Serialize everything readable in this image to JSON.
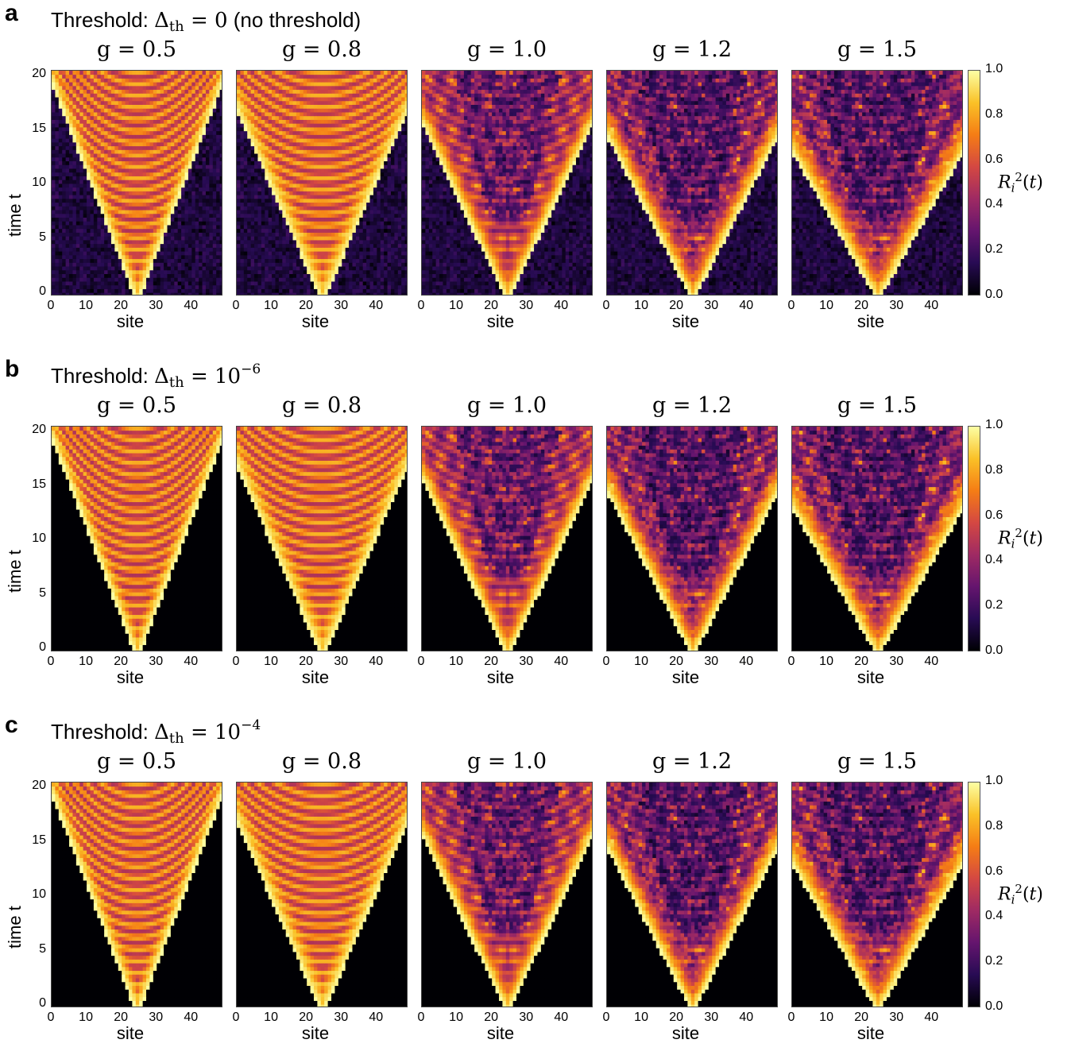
{
  "rows": [
    {
      "letter": "a",
      "title_prefix": "Threshold: ",
      "title_math": "Δ",
      "title_sub": "th",
      "title_eq": " = 0",
      "title_sup": "",
      "title_suffix": " (no threshold)"
    },
    {
      "letter": "b",
      "title_prefix": "Threshold: ",
      "title_math": "Δ",
      "title_sub": "th",
      "title_eq": " = 10",
      "title_sup": "−6",
      "title_suffix": ""
    },
    {
      "letter": "c",
      "title_prefix": "Threshold: ",
      "title_math": "Δ",
      "title_sub": "th",
      "title_eq": " = 10",
      "title_sup": "−4",
      "title_suffix": ""
    }
  ],
  "panel_titles": [
    "g = 0.5",
    "g = 0.8",
    "g = 1.0",
    "g = 1.2",
    "g = 1.5"
  ],
  "ylabel": "time t",
  "xlabel": "site",
  "colorbar": {
    "label": "R_i^2(t)",
    "ticks": [
      "1.0",
      "0.8",
      "0.6",
      "0.4",
      "0.2",
      "0.0"
    ],
    "colormap": "inferno"
  },
  "chart_data": {
    "type": "heatmap",
    "rows": [
      "a",
      "b",
      "c"
    ],
    "g_values": [
      0.5,
      0.8,
      1.0,
      1.2,
      1.5
    ],
    "thresholds": [
      "0",
      "1e-6",
      "1e-4"
    ],
    "x_label": "site",
    "y_label": "time t",
    "x_ticks": [
      0,
      10,
      20,
      30,
      40
    ],
    "y_ticks": [
      0,
      5,
      10,
      15,
      20
    ],
    "xlim": [
      0,
      48
    ],
    "ylim": [
      0,
      20
    ],
    "zlim": [
      0,
      1
    ],
    "colorbar_label": "R_i^2(t)",
    "center_site": 24
  }
}
